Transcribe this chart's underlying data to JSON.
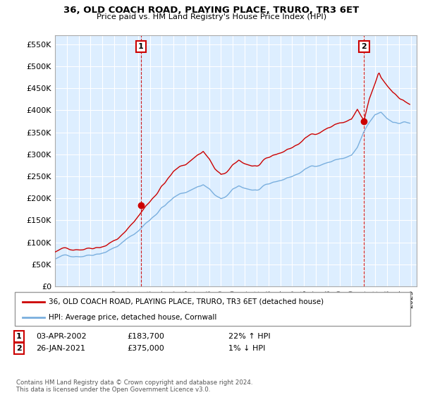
{
  "title": "36, OLD COACH ROAD, PLAYING PLACE, TRURO, TR3 6ET",
  "subtitle": "Price paid vs. HM Land Registry's House Price Index (HPI)",
  "legend_line1": "36, OLD COACH ROAD, PLAYING PLACE, TRURO, TR3 6ET (detached house)",
  "legend_line2": "HPI: Average price, detached house, Cornwall",
  "annotation1_date": "03-APR-2002",
  "annotation1_price": "£183,700",
  "annotation1_hpi": "22% ↑ HPI",
  "annotation2_date": "26-JAN-2021",
  "annotation2_price": "£375,000",
  "annotation2_hpi": "1% ↓ HPI",
  "footer": "Contains HM Land Registry data © Crown copyright and database right 2024.\nThis data is licensed under the Open Government Licence v3.0.",
  "property_color": "#cc0000",
  "hpi_color": "#7aafde",
  "bg_color": "#ddeeff",
  "ylim": [
    0,
    570000
  ],
  "yticks": [
    0,
    50000,
    100000,
    150000,
    200000,
    250000,
    300000,
    350000,
    400000,
    450000,
    500000,
    550000
  ],
  "sale1_x": 2002.25,
  "sale1_y": 183700,
  "sale2_x": 2021.07,
  "sale2_y": 375000,
  "xmin": 1995.0,
  "xmax": 2025.5
}
